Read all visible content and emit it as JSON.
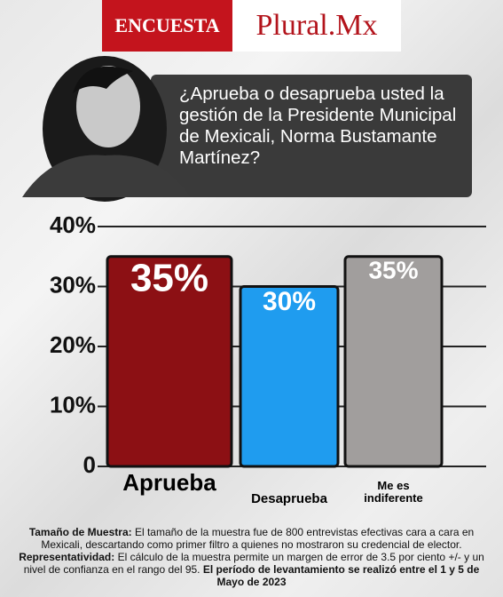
{
  "header": {
    "left": "ENCUESTA",
    "right": "Plural.Mx"
  },
  "question": "¿Aprueba o desaprueba usted la gestión de la Presidente Municipal de Mexicali, Norma Bustamante Martínez?",
  "chart_data": {
    "type": "bar",
    "categories": [
      "Aprueba",
      "Desaprueba",
      "Me es indiferente"
    ],
    "values": [
      35,
      30,
      35
    ],
    "value_labels": [
      "35%",
      "30%",
      "35%"
    ],
    "colors": [
      "#8c1014",
      "#1f9cef",
      "#a19e9d"
    ],
    "ylim": [
      0,
      40
    ],
    "yticks": [
      0,
      {
        "value": 10,
        "label": "10%"
      },
      {
        "value": 20,
        "label": "20%"
      },
      {
        "value": 30,
        "label": "30%"
      },
      {
        "value": 40,
        "label": "40%"
      }
    ],
    "grid": true
  },
  "footnote": {
    "items": [
      {
        "label": "Tamaño de Muestra:",
        "text": "El tamaño de la muestra fue de 800 entrevistas efectivas cara a cara en Mexicali, descartando como primer filtro a quienes no mostraron su credencial de elector."
      },
      {
        "label": "Representatividad:",
        "text": "El cálculo de la muestra permite un margen de error de 3.5 por ciento +/- y un nivel de confianza en el rango del 95.",
        "note": "El período de levantamiento se realizó entre el 1 y 5 de Mayo de 2023"
      }
    ]
  }
}
